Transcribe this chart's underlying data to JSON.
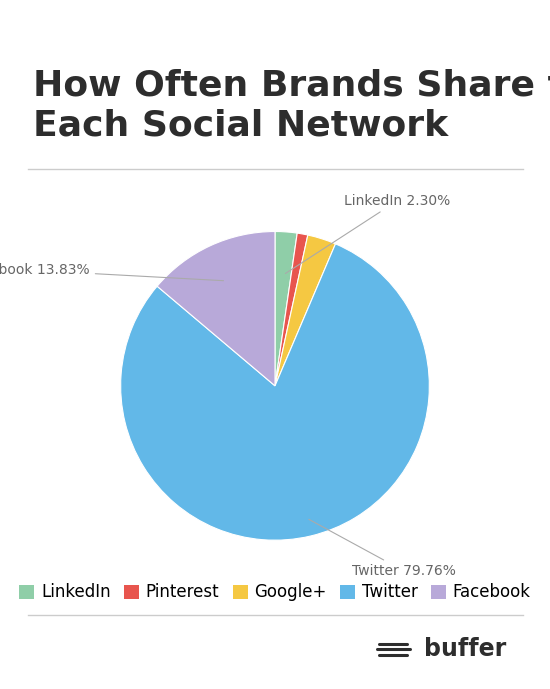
{
  "title": "How Often Brands Share to\nEach Social Network",
  "slices": [
    {
      "label": "LinkedIn",
      "value": 2.3,
      "color": "#8fcea8"
    },
    {
      "label": "Pinterest",
      "value": 1.11,
      "color": "#e8554e"
    },
    {
      "label": "Google+",
      "value": 3.0,
      "color": "#f5c842"
    },
    {
      "label": "Twitter",
      "value": 79.76,
      "color": "#62b8e8"
    },
    {
      "label": "Facebook",
      "value": 13.83,
      "color": "#b8a9d9"
    }
  ],
  "background_color": "#ffffff",
  "title_fontsize": 26,
  "title_color": "#2d2d2d",
  "legend_fontsize": 12,
  "annotation_fontsize": 10,
  "annotation_color": "#666666"
}
